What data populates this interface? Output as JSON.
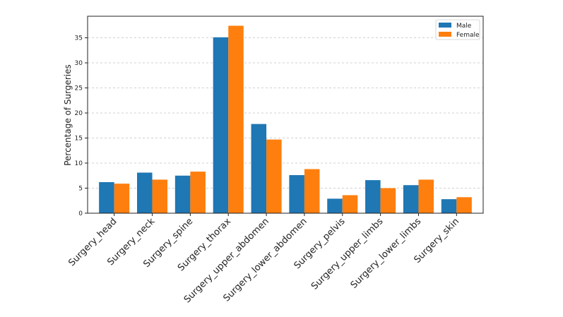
{
  "chart_data": {
    "type": "bar",
    "title": "",
    "xlabel": "",
    "ylabel": "Percentage of Surgeries",
    "categories": [
      "Surgery_head",
      "Surgery_neck",
      "Surgery_spine",
      "Surgery_thorax",
      "Surgery_upper_abdomen",
      "Surgery_lower_abdomen",
      "Surgery_pelvis",
      "Surgery_upper_limbs",
      "Surgery_lower_limbs",
      "Surgery_skin"
    ],
    "series": [
      {
        "name": "Male",
        "color": "#1f77b4",
        "values": [
          6.2,
          8.1,
          7.5,
          35.1,
          17.8,
          7.6,
          2.9,
          6.6,
          5.6,
          2.8
        ]
      },
      {
        "name": "Female",
        "color": "#ff7f0e",
        "values": [
          5.9,
          6.7,
          8.3,
          37.4,
          14.7,
          8.8,
          3.6,
          5.0,
          6.7,
          3.2
        ]
      }
    ],
    "ylim": [
      0,
      39.3
    ],
    "yticks": [
      0,
      5,
      10,
      15,
      20,
      25,
      30,
      35
    ],
    "grid": "y-dashed",
    "legend": "top-right"
  }
}
